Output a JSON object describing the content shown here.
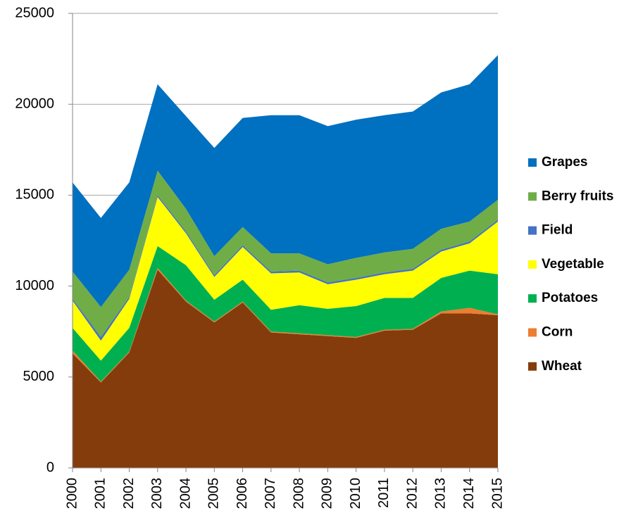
{
  "chart_data": {
    "type": "stacked_area",
    "categories": [
      "2000",
      "2001",
      "2002",
      "2003",
      "2004",
      "2005",
      "2006",
      "2007",
      "2008",
      "2009",
      "2010",
      "2011",
      "2012",
      "2013",
      "2014",
      "2015"
    ],
    "series": [
      {
        "name": "Wheat",
        "color": "#843c0c",
        "values": [
          6300,
          4700,
          6350,
          10900,
          9150,
          8000,
          9100,
          7450,
          7350,
          7250,
          7150,
          7550,
          7600,
          8500,
          8500,
          8400
        ]
      },
      {
        "name": "Corn",
        "color": "#ed7d31",
        "values": [
          150,
          50,
          50,
          100,
          50,
          50,
          50,
          50,
          50,
          50,
          50,
          50,
          50,
          100,
          300,
          50
        ]
      },
      {
        "name": "Potatoes",
        "color": "#00b050",
        "values": [
          1250,
          1150,
          1300,
          1200,
          1950,
          1200,
          1200,
          1200,
          1550,
          1450,
          1700,
          1750,
          1700,
          1850,
          2050,
          2200
        ]
      },
      {
        "name": "Vegetable",
        "color": "#ffff00",
        "values": [
          1500,
          1100,
          1600,
          2700,
          1750,
          1250,
          1800,
          2000,
          1800,
          1350,
          1450,
          1300,
          1500,
          1450,
          1500,
          2900
        ]
      },
      {
        "name": "Field",
        "color": "#4472c4",
        "values": [
          100,
          200,
          100,
          100,
          100,
          100,
          100,
          100,
          100,
          100,
          100,
          100,
          100,
          100,
          100,
          100
        ]
      },
      {
        "name": "Berry fruits",
        "color": "#70ad47",
        "values": [
          1500,
          1650,
          1500,
          1350,
          1250,
          1050,
          1000,
          1000,
          950,
          1000,
          1100,
          1100,
          1100,
          1150,
          1100,
          1100
        ]
      },
      {
        "name": "Grapes",
        "color": "#0070c0",
        "values": [
          4900,
          4900,
          4800,
          4750,
          5100,
          5950,
          6000,
          7600,
          7600,
          7600,
          7600,
          7550,
          7550,
          7500,
          7550,
          7950
        ]
      }
    ],
    "ylim": [
      0,
      25000
    ],
    "yticks": [
      0,
      5000,
      10000,
      15000,
      20000,
      25000
    ],
    "grid": true,
    "legend": "right"
  }
}
